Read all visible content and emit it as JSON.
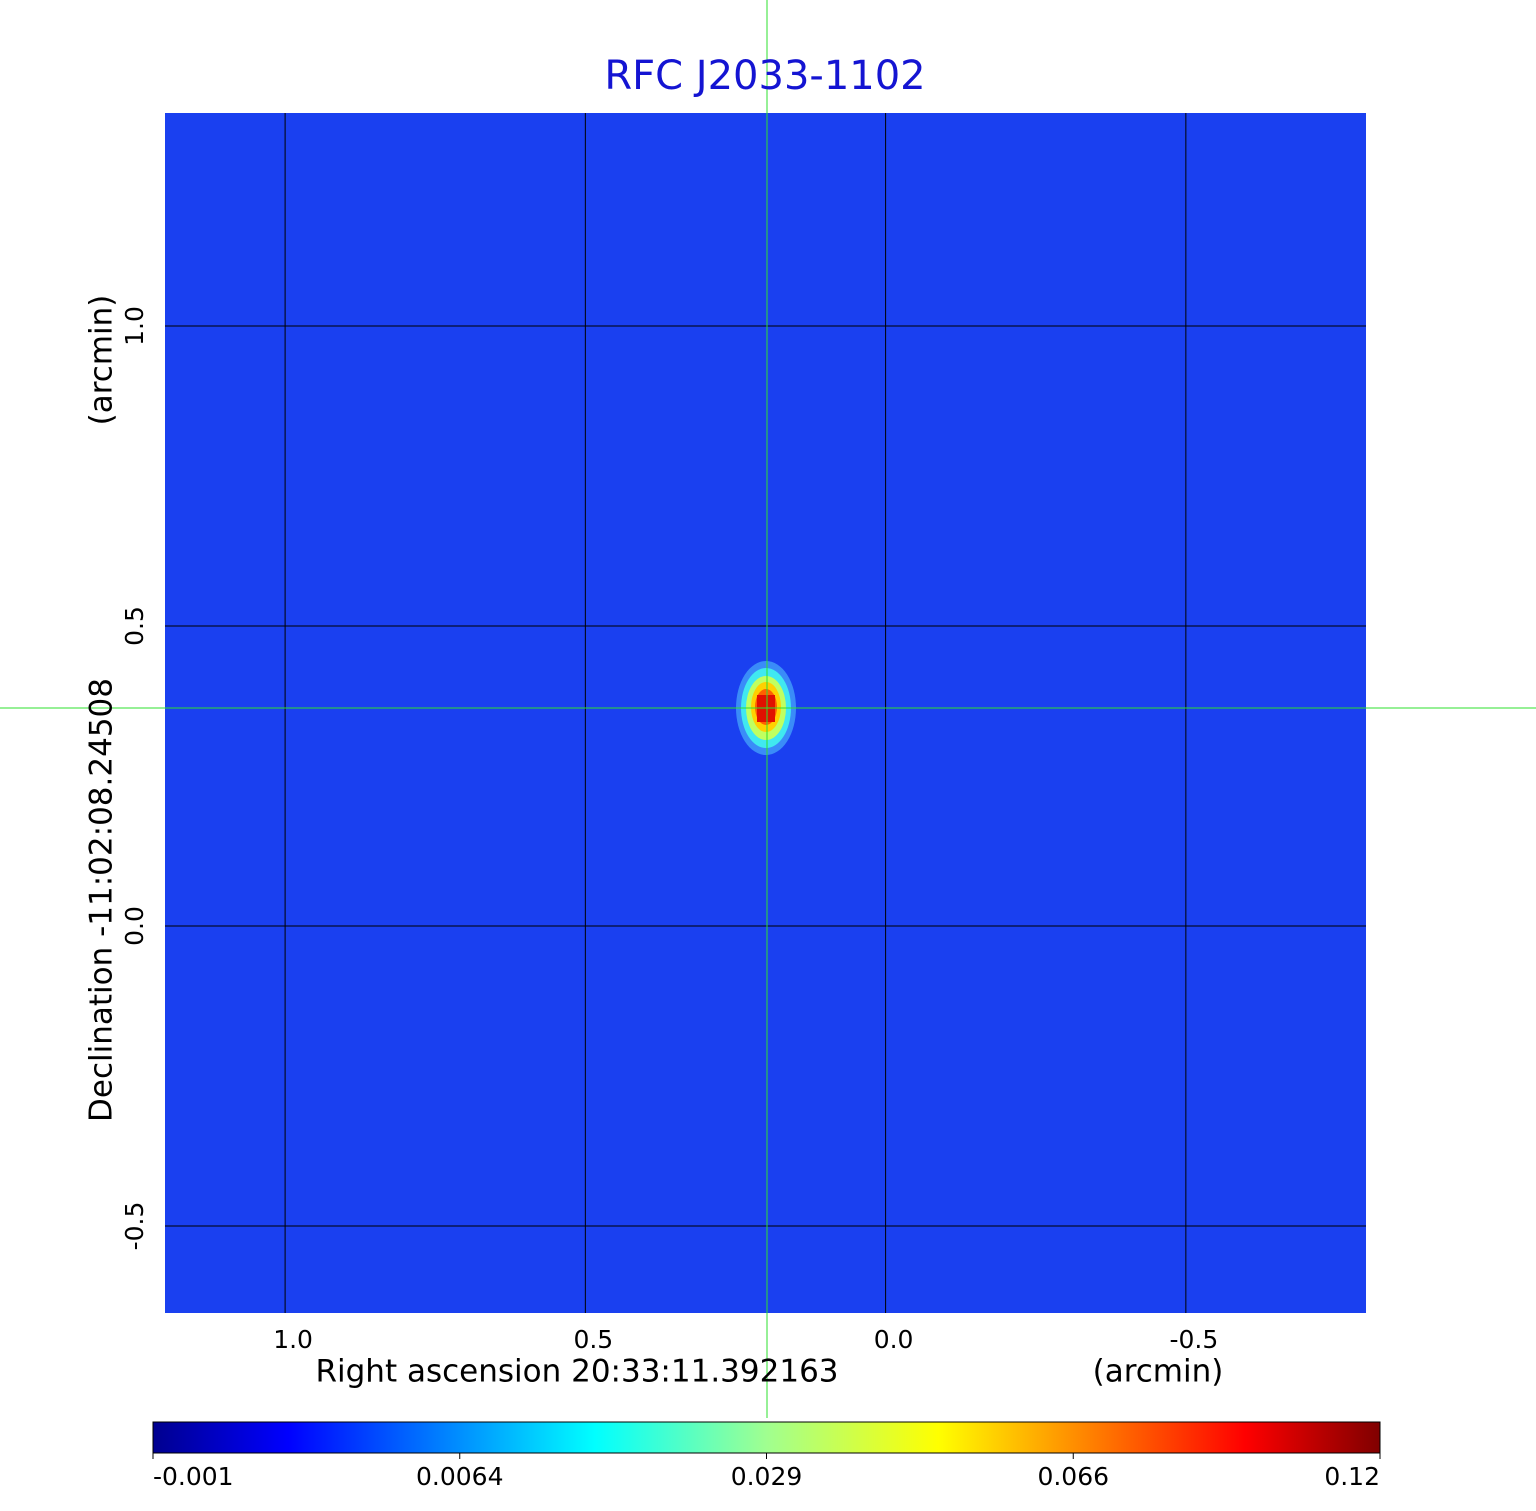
{
  "chart_data": {
    "type": "image",
    "title": "RFC J2033-1102",
    "x_label": "Right ascension  20:33:11.392163",
    "x_unit": "(arcmin)",
    "y_label": "Declination  -11:02:08.24508",
    "y_unit": "(arcmin)",
    "xlim": [
      1.2,
      -0.8
    ],
    "xticks": [
      {
        "value": 1.0,
        "label": "1.0"
      },
      0.5,
      {
        "value": 0.0,
        "label": "0.0"
      },
      -0.5
    ],
    "ylim": [
      -0.645,
      1.355
    ],
    "yticks": [
      {
        "value": 1.0,
        "label": "1.0"
      },
      0.5,
      {
        "value": 0.0,
        "label": "0.0"
      },
      -0.5
    ],
    "grid": true,
    "colorbar_ticks": [
      -0.001,
      0.0064,
      0.029,
      0.066,
      0.12
    ]
  }
}
